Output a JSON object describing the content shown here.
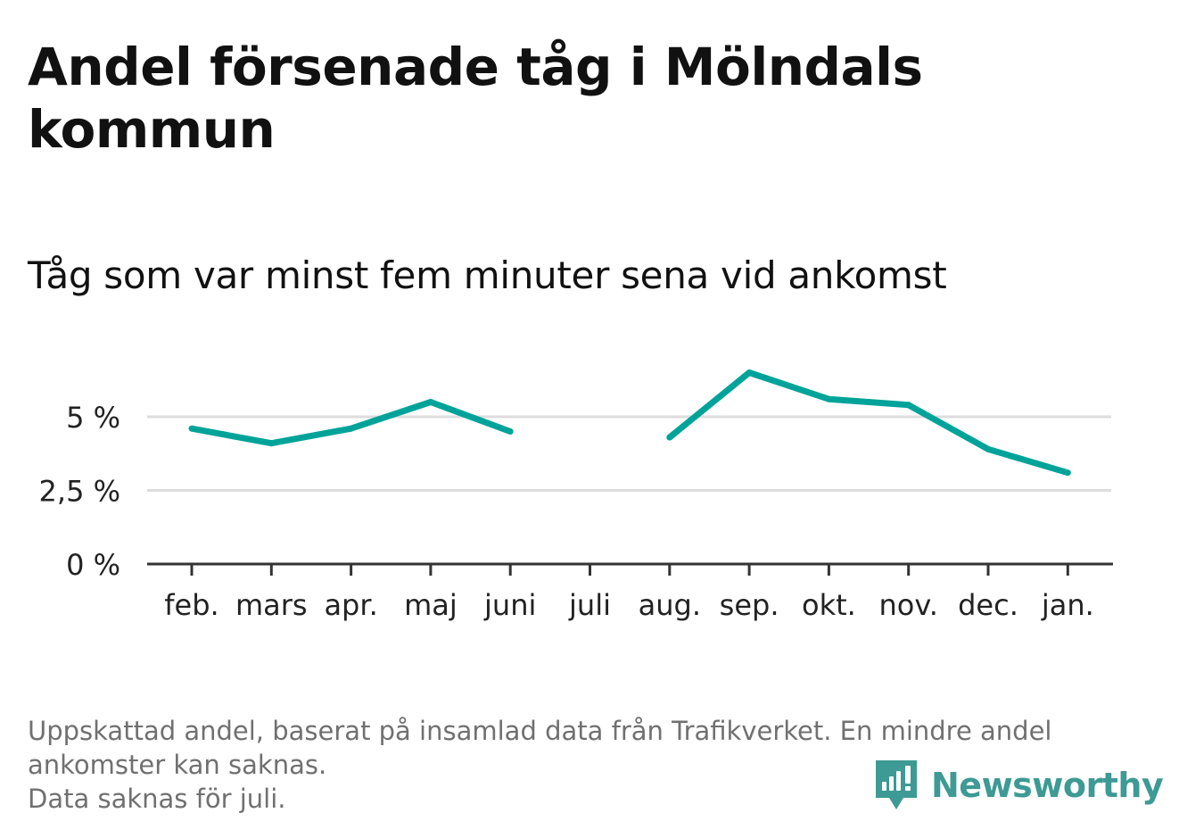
{
  "title": "Andel försenade tåg i Mölndals kommun",
  "subtitle": "Tåg som var minst fem minuter sena vid ankomst",
  "footnote": {
    "line1": "Uppskattad andel, baserat på insamlad data från Trafikverket. En mindre andel",
    "line2": "ankomster kan saknas.",
    "line3": "Data saknas för juli."
  },
  "brand": {
    "name": "Newsworthy",
    "color": "#3d9a94",
    "icon": "newsworthy-logo-icon"
  },
  "colors": {
    "line": "#00a39a",
    "grid": "#dddddd",
    "axis": "#333333"
  },
  "chart_data": {
    "type": "line",
    "categories": [
      "feb.",
      "mars",
      "apr.",
      "maj",
      "juni",
      "juli",
      "aug.",
      "sep.",
      "okt.",
      "nov.",
      "dec.",
      "jan."
    ],
    "series": [
      {
        "values": [
          4.6,
          4.1,
          4.6,
          5.5,
          4.5,
          null,
          4.3,
          6.5,
          5.6,
          5.4,
          3.9,
          3.1
        ]
      }
    ],
    "yticks": [
      0,
      2.5,
      5
    ],
    "ytick_labels": [
      "0 %",
      "2,5 %",
      "5 %"
    ],
    "ylim": [
      0,
      7.4
    ],
    "grid": true,
    "legend": "none",
    "xlabel": "",
    "ylabel": ""
  }
}
